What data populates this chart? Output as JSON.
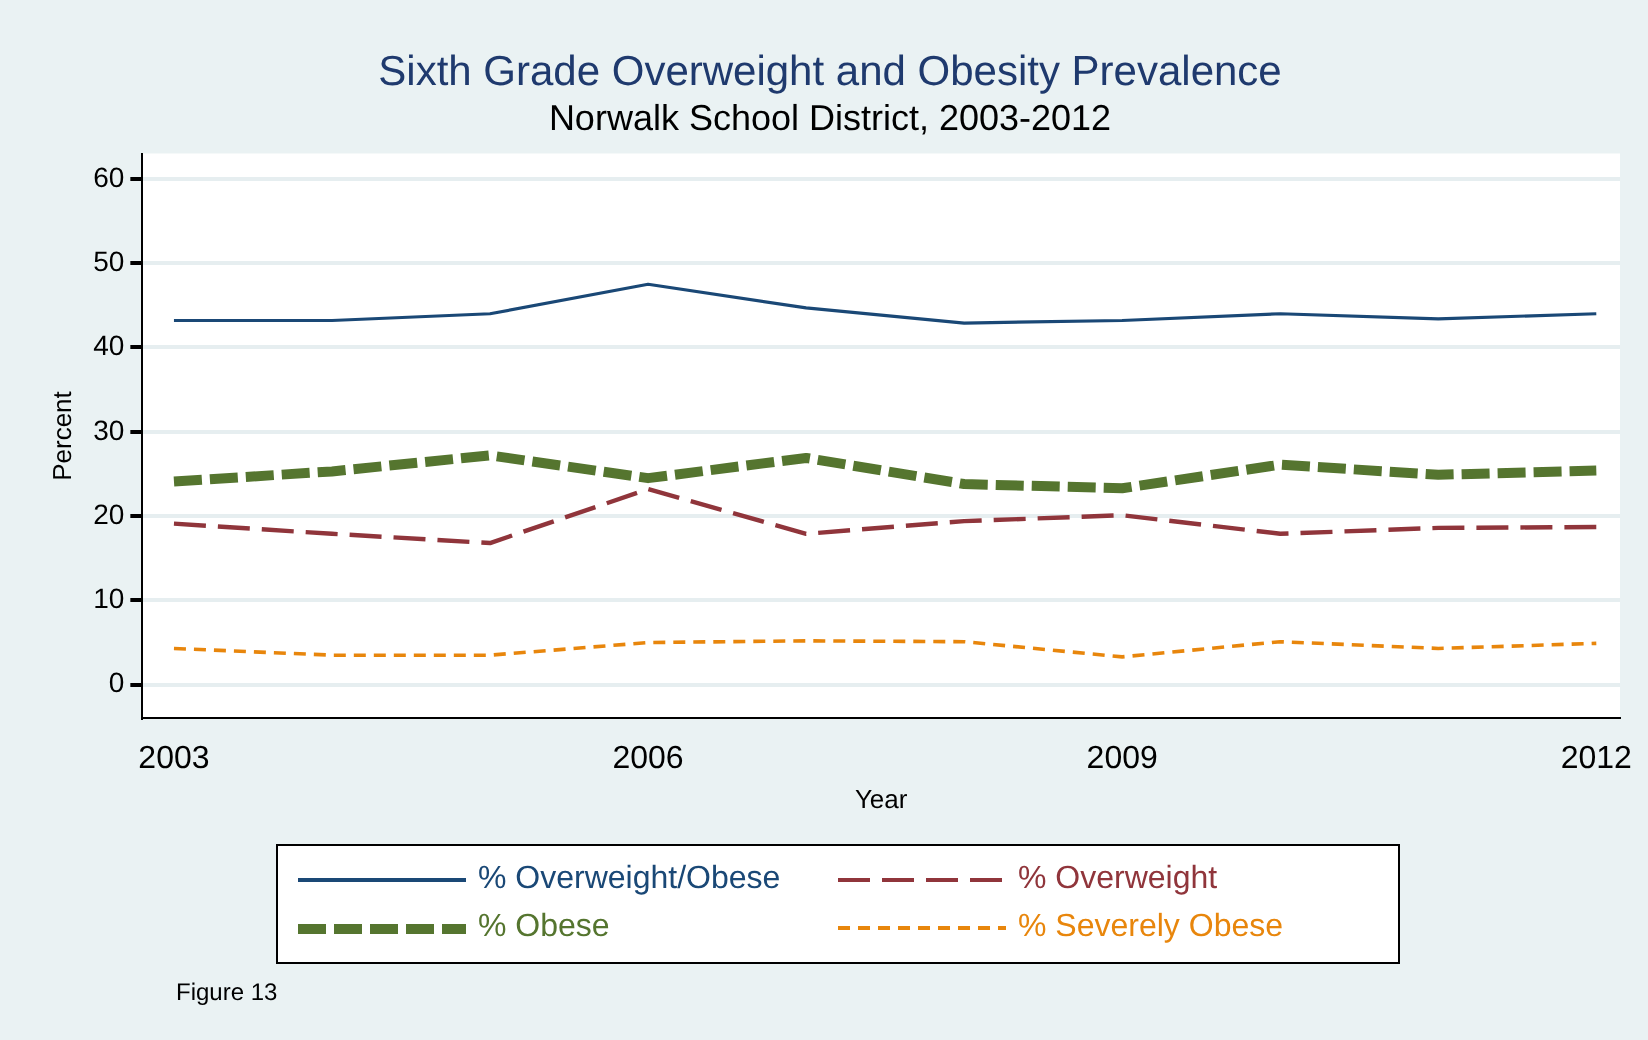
{
  "chart_data": {
    "type": "line",
    "title": "Sixth Grade Overweight and Obesity Prevalence",
    "subtitle": "Norwalk School District, 2003-2012",
    "xlabel": "Year",
    "ylabel": "Percent",
    "x": [
      2003,
      2004,
      2005,
      2006,
      2007,
      2008,
      2009,
      2010,
      2011,
      2012
    ],
    "series": [
      {
        "name": "% Overweight/Obese",
        "color": "#1a4876",
        "line_style": "solid",
        "values": [
          43.2,
          43.2,
          44.0,
          47.5,
          44.7,
          42.9,
          43.2,
          44.0,
          43.4,
          44.0
        ]
      },
      {
        "name": "% Overweight",
        "color": "#90353b",
        "line_style": "dashed",
        "values": [
          19.1,
          17.9,
          16.8,
          23.2,
          17.9,
          19.4,
          20.1,
          17.9,
          18.6,
          18.7
        ]
      },
      {
        "name": "% Obese",
        "color": "#55752f",
        "line_style": "dashed",
        "values": [
          24.1,
          25.3,
          27.2,
          24.5,
          26.9,
          23.8,
          23.3,
          26.1,
          24.9,
          25.4
        ]
      },
      {
        "name": "% Severely Obese",
        "color": "#e8860c",
        "line_style": "dashed",
        "values": [
          4.3,
          3.5,
          3.5,
          5.0,
          5.2,
          5.1,
          3.3,
          5.1,
          4.3,
          4.9
        ]
      }
    ],
    "xlim": [
      2002.8,
      2012.15
    ],
    "xticks": [
      2003,
      2006,
      2009,
      2012
    ],
    "ylim": [
      -4,
      63
    ],
    "yticks": [
      0,
      10,
      20,
      30,
      40,
      50,
      60
    ],
    "grid": "y",
    "legend": "bottom",
    "marker": "none",
    "annotations": [
      "Figure 13"
    ]
  }
}
